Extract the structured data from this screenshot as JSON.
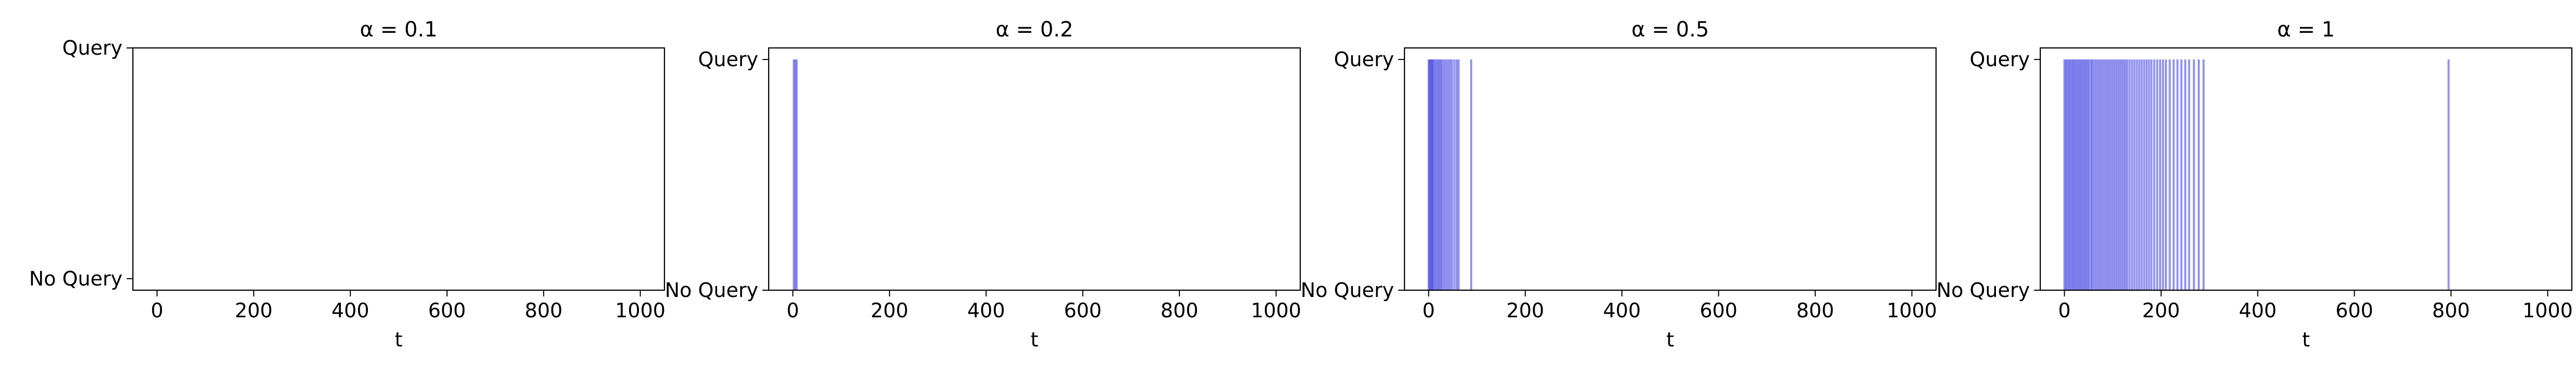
{
  "chart_data": [
    {
      "type": "bar",
      "title": "α = 0.1",
      "xlabel": "t",
      "ylabel": "",
      "xlim": [
        -50,
        1050
      ],
      "xticks": [
        "0",
        "200",
        "400",
        "600",
        "800",
        "1000"
      ],
      "yticks": [
        "No Query",
        "Query"
      ],
      "ylim": [
        -0.05,
        1.0
      ],
      "query_times": [],
      "color": "#3b3be0"
    },
    {
      "type": "bar",
      "title": "α = 0.2",
      "xlabel": "t",
      "ylabel": "",
      "xlim": [
        -50,
        1050
      ],
      "xticks": [
        "0",
        "200",
        "400",
        "600",
        "800",
        "1000"
      ],
      "yticks": [
        "No Query",
        "Query"
      ],
      "ylim": [
        0,
        1.05
      ],
      "query_times": [
        2,
        5,
        8
      ],
      "color": "#3b3be0"
    },
    {
      "type": "bar",
      "title": "α = 0.5",
      "xlabel": "t",
      "ylabel": "",
      "xlim": [
        -50,
        1050
      ],
      "xticks": [
        "0",
        "200",
        "400",
        "600",
        "800",
        "1000"
      ],
      "yticks": [
        "No Query",
        "Query"
      ],
      "ylim": [
        0,
        1.05
      ],
      "query_times": [
        0,
        2,
        4,
        6,
        8,
        10,
        13,
        16,
        19,
        22,
        25,
        28,
        32,
        36,
        40,
        44,
        48,
        53,
        58,
        62,
        88
      ],
      "color": "#3b3be0"
    },
    {
      "type": "bar",
      "title": "α = 1",
      "xlabel": "t",
      "ylabel": "",
      "xlim": [
        -50,
        1050
      ],
      "xticks": [
        "0",
        "200",
        "400",
        "600",
        "800",
        "1000"
      ],
      "yticks": [
        "No Query",
        "Query"
      ],
      "ylim": [
        0,
        1.05
      ],
      "query_times": [
        0,
        3,
        6,
        9,
        12,
        15,
        18,
        21,
        24,
        27,
        30,
        33,
        36,
        39,
        42,
        45,
        48,
        51,
        55,
        58,
        62,
        66,
        70,
        74,
        78,
        82,
        86,
        90,
        94,
        98,
        102,
        106,
        110,
        114,
        118,
        122,
        126,
        130,
        135,
        140,
        145,
        150,
        155,
        160,
        165,
        170,
        175,
        180,
        186,
        192,
        198,
        204,
        210,
        218,
        226,
        234,
        242,
        250,
        258,
        268,
        278,
        288,
        795
      ],
      "color": "#3b3be0"
    }
  ]
}
